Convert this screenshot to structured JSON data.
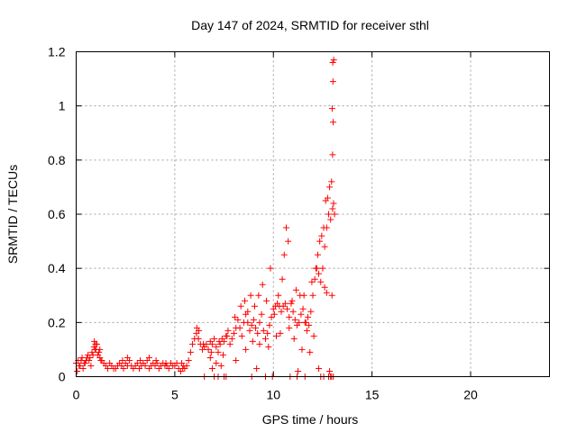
{
  "chart_data": {
    "type": "scatter",
    "title": "Day 147 of 2024, SRMTID for receiver sthl",
    "xlabel": "GPS time / hours",
    "ylabel": "SRMTID / TECUs",
    "xlim": [
      0,
      24
    ],
    "ylim": [
      0,
      1.2
    ],
    "xticks": [
      0,
      5,
      10,
      15,
      20
    ],
    "xtick_labels": [
      "0",
      "5",
      "10",
      "15",
      "20"
    ],
    "yticks": [
      0,
      0.2,
      0.4,
      0.6,
      0.8,
      1.0,
      1.2
    ],
    "ytick_labels": [
      "0",
      "0.2",
      "0.4",
      "0.6",
      "0.8",
      "1",
      "1.2"
    ],
    "grid": true,
    "marker": "+",
    "color": "#ff0000",
    "series": [
      {
        "name": "sthl",
        "x": [
          0.0,
          0.1,
          0.2,
          0.3,
          0.4,
          0.5,
          0.6,
          0.7,
          0.8,
          0.9,
          1.0,
          1.1,
          1.2,
          1.3,
          1.4,
          1.5,
          1.6,
          1.7,
          1.8,
          1.9,
          2.0,
          2.1,
          2.2,
          2.3,
          2.4,
          2.5,
          2.6,
          2.7,
          2.8,
          2.9,
          3.0,
          3.1,
          3.2,
          3.3,
          3.4,
          3.5,
          3.6,
          3.7,
          3.8,
          3.9,
          4.0,
          4.1,
          4.2,
          4.3,
          4.4,
          4.5,
          4.6,
          4.7,
          4.8,
          4.9,
          5.0,
          5.1,
          5.2,
          5.3,
          5.4,
          5.5,
          5.6,
          5.7,
          5.8,
          5.9,
          6.0,
          6.1,
          6.2,
          6.3,
          6.4,
          6.5,
          6.6,
          6.7,
          6.8,
          6.9,
          7.0,
          7.1,
          7.2,
          7.3,
          7.4,
          7.5,
          7.6,
          7.7,
          7.8,
          7.9,
          8.0,
          8.1,
          8.2,
          8.3,
          8.4,
          8.5,
          8.6,
          8.7,
          8.8,
          8.9,
          9.0,
          9.1,
          9.2,
          9.3,
          9.4,
          9.5,
          9.6,
          9.7,
          9.8,
          9.9,
          10.0,
          10.1,
          10.2,
          10.3,
          10.4,
          10.5,
          10.6,
          10.7,
          10.8,
          10.9,
          11.0,
          11.1,
          11.2,
          11.3,
          11.4,
          11.5,
          11.6,
          11.7,
          11.8,
          11.9,
          12.0,
          12.1,
          12.2,
          12.3,
          12.4,
          12.5,
          12.6,
          12.7,
          12.8,
          12.9,
          13.0,
          13.05,
          13.1,
          0.05,
          0.15,
          0.25,
          0.35,
          0.45,
          0.55,
          0.65,
          0.75,
          0.85,
          0.95,
          1.05,
          1.15,
          1.25,
          0.92,
          0.98,
          1.2,
          2.35,
          2.6,
          3.25,
          3.7,
          4.05,
          4.55,
          5.35,
          5.45,
          6.12,
          6.22,
          6.45,
          6.85,
          7.25,
          7.65,
          8.05,
          8.35,
          8.55,
          8.7,
          8.85,
          9.05,
          9.25,
          9.45,
          9.65,
          9.85,
          10.05,
          10.25,
          10.45,
          10.55,
          10.65,
          10.75,
          10.95,
          11.15,
          11.35,
          11.55,
          11.65,
          11.75,
          11.95,
          12.15,
          12.25,
          12.35,
          12.45,
          12.55,
          12.65,
          12.75,
          12.85,
          12.95,
          13.0,
          13.03,
          12.98,
          13.02,
          13.06,
          13.01,
          12.97,
          6.8,
          7.1,
          7.45,
          8.1,
          8.6,
          8.95,
          9.3,
          9.75,
          10.15,
          10.35,
          10.8,
          11.05,
          11.45,
          11.85,
          12.05,
          12.6,
          12.7,
          6.5,
          7.2,
          7.6,
          8.9,
          9.6,
          10.85,
          11.6,
          12.4,
          12.8,
          12.9,
          13.04,
          6.9,
          7.35,
          9.15,
          11.25,
          12.3,
          12.85,
          7.0,
          7.5,
          9.95,
          11.2,
          12.55,
          12.95
        ],
        "y": [
          0.05,
          0.06,
          0.04,
          0.07,
          0.05,
          0.06,
          0.08,
          0.07,
          0.09,
          0.11,
          0.1,
          0.08,
          0.07,
          0.06,
          0.05,
          0.04,
          0.03,
          0.05,
          0.04,
          0.03,
          0.03,
          0.04,
          0.05,
          0.04,
          0.03,
          0.05,
          0.04,
          0.06,
          0.04,
          0.03,
          0.04,
          0.05,
          0.03,
          0.04,
          0.05,
          0.04,
          0.06,
          0.03,
          0.04,
          0.05,
          0.04,
          0.05,
          0.03,
          0.04,
          0.05,
          0.04,
          0.04,
          0.03,
          0.05,
          0.04,
          0.04,
          0.05,
          0.03,
          0.02,
          0.03,
          0.03,
          0.04,
          0.06,
          0.09,
          0.12,
          0.14,
          0.16,
          0.14,
          0.12,
          0.1,
          0.11,
          0.12,
          0.1,
          0.13,
          0.12,
          0.14,
          0.11,
          0.09,
          0.12,
          0.14,
          0.13,
          0.15,
          0.17,
          0.12,
          0.14,
          0.16,
          0.18,
          0.21,
          0.18,
          0.15,
          0.2,
          0.23,
          0.2,
          0.17,
          0.19,
          0.21,
          0.18,
          0.16,
          0.2,
          0.23,
          0.17,
          0.14,
          0.16,
          0.19,
          0.22,
          0.25,
          0.26,
          0.27,
          0.26,
          0.24,
          0.26,
          0.27,
          0.25,
          0.22,
          0.27,
          0.24,
          0.21,
          0.19,
          0.2,
          0.23,
          0.25,
          0.2,
          0.17,
          0.19,
          0.24,
          0.3,
          0.36,
          0.4,
          0.38,
          0.35,
          0.4,
          0.48,
          0.55,
          0.6,
          0.58,
          0.62,
          0.64,
          0.6,
          0.02,
          0.04,
          0.06,
          0.03,
          0.05,
          0.07,
          0.06,
          0.04,
          0.08,
          0.1,
          0.12,
          0.09,
          0.06,
          0.13,
          0.12,
          0.1,
          0.06,
          0.07,
          0.06,
          0.07,
          0.06,
          0.05,
          0.05,
          0.04,
          0.18,
          0.17,
          0.12,
          0.09,
          0.13,
          0.15,
          0.22,
          0.26,
          0.28,
          0.24,
          0.3,
          0.26,
          0.3,
          0.34,
          0.28,
          0.4,
          0.23,
          0.3,
          0.36,
          0.45,
          0.55,
          0.5,
          0.28,
          0.32,
          0.3,
          0.3,
          0.2,
          0.22,
          0.35,
          0.4,
          0.45,
          0.5,
          0.52,
          0.55,
          0.65,
          0.66,
          0.7,
          0.72,
          0.82,
          0.94,
          0.99,
          1.09,
          1.17,
          1.16,
          0.3,
          0.07,
          0.05,
          0.08,
          0.06,
          0.1,
          0.13,
          0.12,
          0.11,
          0.15,
          0.16,
          0.18,
          0.14,
          0.1,
          0.09,
          0.15,
          0.33,
          0.31,
          0.0,
          0.0,
          0.0,
          0.0,
          0.0,
          0.0,
          0.0,
          0.0,
          0.0,
          0.0,
          0.0,
          0.03,
          0.04,
          0.03,
          0.02,
          0.03,
          0.02,
          0.0,
          0.0,
          0.0,
          0.0,
          0.0,
          0.0
        ]
      }
    ]
  }
}
